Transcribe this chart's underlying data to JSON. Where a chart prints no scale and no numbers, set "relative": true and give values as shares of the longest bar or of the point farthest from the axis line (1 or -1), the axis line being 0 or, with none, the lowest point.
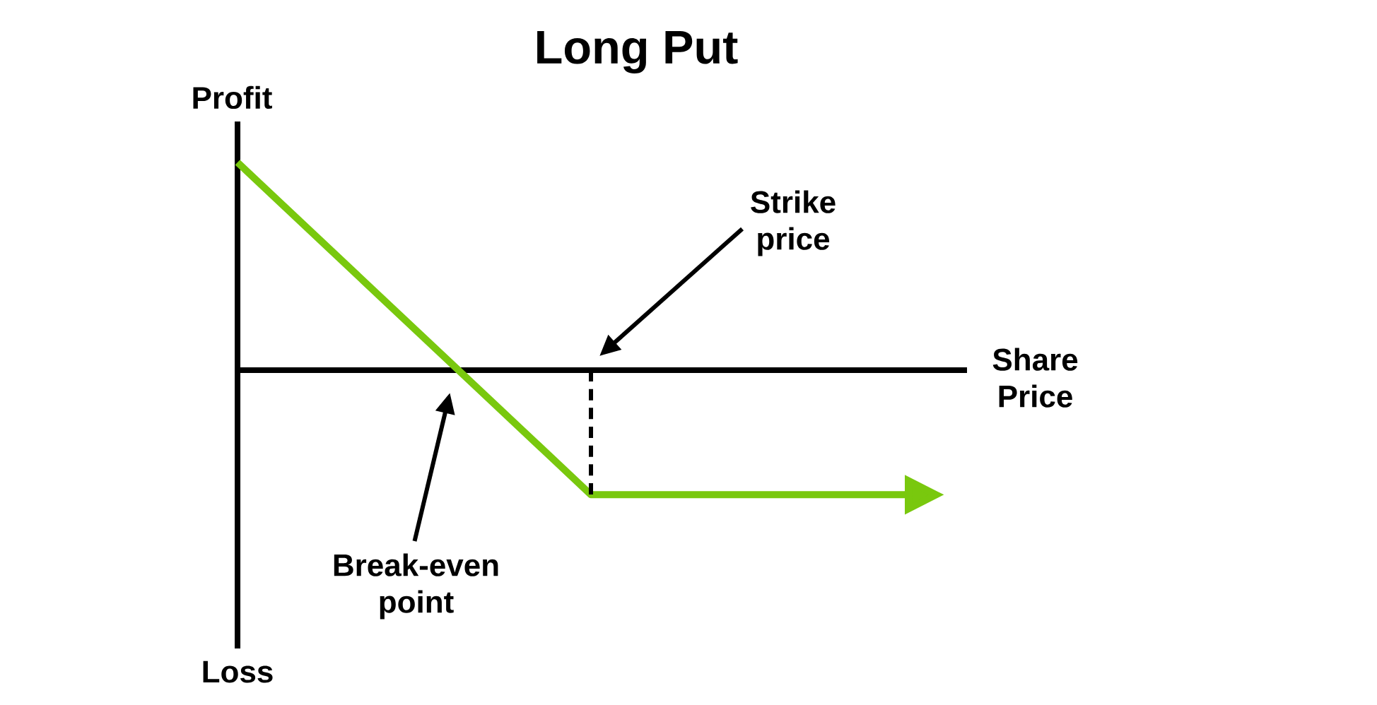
{
  "chart_data": {
    "type": "line",
    "title": "Long Put",
    "xlabel": "Share Price",
    "ylabel": "Profit",
    "relative": true,
    "categories": [
      null,
      null,
      null
    ],
    "series": [
      {
        "color": "#79c80e",
        "values": [
          1,
          -0.6,
          -0.6
        ]
      }
    ],
    "annotations": [
      "Strike price",
      "Break-even point",
      "Loss"
    ]
  }
}
